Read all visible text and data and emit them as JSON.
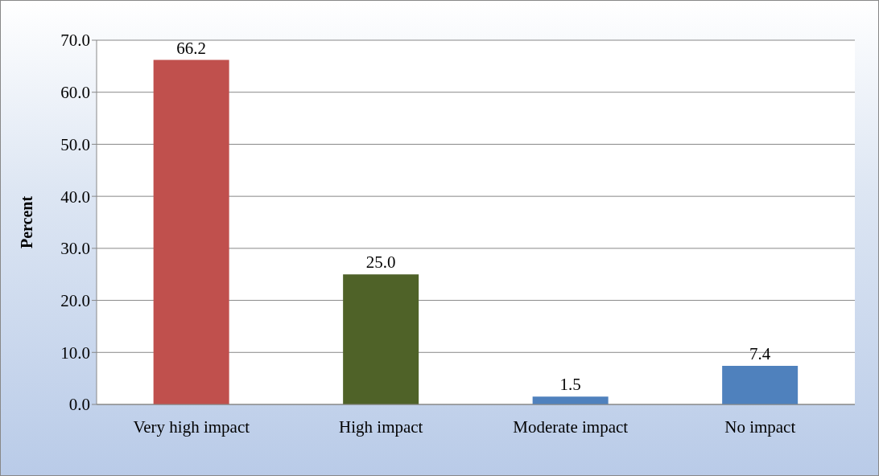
{
  "chart_data": {
    "type": "bar",
    "ylabel": "Percent",
    "categories": [
      "Very high impact",
      "High impact",
      "Moderate impact",
      "No impact"
    ],
    "values": [
      66.2,
      25.0,
      1.5,
      7.4
    ],
    "colors": [
      "#c0504d",
      "#4f6228",
      "#4f81bd",
      "#4f81bd"
    ],
    "value_labels": [
      "66.2",
      "25.0",
      "1.5",
      "7.4"
    ],
    "ylim": [
      0,
      70
    ],
    "yticks": [
      {
        "value": 0,
        "label": "0.0"
      },
      {
        "value": 10,
        "label": "10.0"
      },
      {
        "value": 20,
        "label": "20.0"
      },
      {
        "value": 30,
        "label": "30.0"
      },
      {
        "value": 40,
        "label": "40.0"
      },
      {
        "value": 50,
        "label": "50.0"
      },
      {
        "value": 60,
        "label": "60.0"
      },
      {
        "value": 70,
        "label": "70.0"
      }
    ],
    "grid": "y",
    "legend": false
  }
}
